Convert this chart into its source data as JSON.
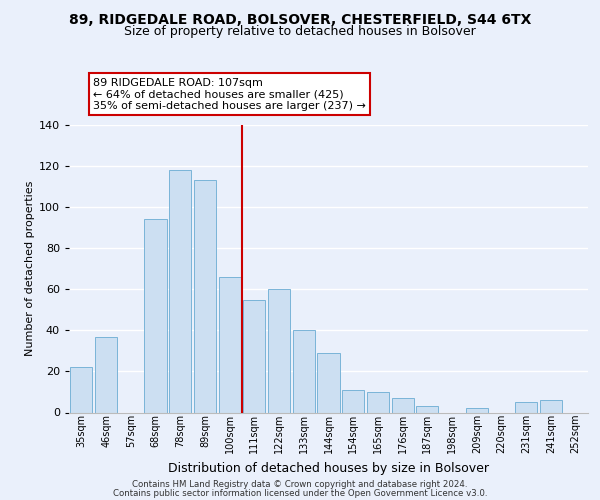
{
  "title1": "89, RIDGEDALE ROAD, BOLSOVER, CHESTERFIELD, S44 6TX",
  "title2": "Size of property relative to detached houses in Bolsover",
  "xlabel": "Distribution of detached houses by size in Bolsover",
  "ylabel": "Number of detached properties",
  "bar_labels": [
    "35sqm",
    "46sqm",
    "57sqm",
    "68sqm",
    "78sqm",
    "89sqm",
    "100sqm",
    "111sqm",
    "122sqm",
    "133sqm",
    "144sqm",
    "154sqm",
    "165sqm",
    "176sqm",
    "187sqm",
    "198sqm",
    "209sqm",
    "220sqm",
    "231sqm",
    "241sqm",
    "252sqm"
  ],
  "bar_values": [
    22,
    37,
    0,
    94,
    118,
    113,
    66,
    55,
    60,
    40,
    29,
    11,
    10,
    7,
    3,
    0,
    2,
    0,
    5,
    6,
    0
  ],
  "bar_color": "#ccdff2",
  "bar_edge_color": "#7ab4d8",
  "vline_color": "#cc0000",
  "ylim": [
    0,
    140
  ],
  "yticks": [
    0,
    20,
    40,
    60,
    80,
    100,
    120,
    140
  ],
  "annotation_line1": "89 RIDGEDALE ROAD: 107sqm",
  "annotation_line2": "← 64% of detached houses are smaller (425)",
  "annotation_line3": "35% of semi-detached houses are larger (237) →",
  "footer1": "Contains HM Land Registry data © Crown copyright and database right 2024.",
  "footer2": "Contains public sector information licensed under the Open Government Licence v3.0.",
  "background_color": "#eaf0fb",
  "grid_color": "white",
  "title1_fontsize": 10,
  "title2_fontsize": 9,
  "ylabel_fontsize": 8,
  "xlabel_fontsize": 9
}
